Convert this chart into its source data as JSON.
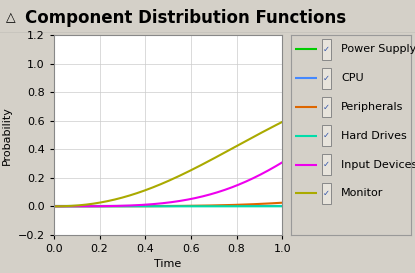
{
  "title": "Component Distribution Functions",
  "xlabel": "Time",
  "ylabel": "Probability",
  "xlim": [
    0.0,
    1.0
  ],
  "ylim": [
    -0.2,
    1.2
  ],
  "xticks": [
    0.0,
    0.2,
    0.4,
    0.6,
    0.8,
    1.0
  ],
  "yticks": [
    -0.2,
    0.0,
    0.2,
    0.4,
    0.6,
    0.8,
    1.0,
    1.2
  ],
  "series": [
    {
      "label": "Power Supply",
      "color": "#00cc00",
      "scale": 200.0,
      "shape": 2.0
    },
    {
      "label": "CPU",
      "color": "#4488ff",
      "scale": 200.0,
      "shape": 2.0
    },
    {
      "label": "Peripherals",
      "color": "#dd6600",
      "scale": 2.5,
      "shape": 4.0
    },
    {
      "label": "Hard Drives",
      "color": "#00ddaa",
      "scale": 40.0,
      "shape": 2.0
    },
    {
      "label": "Input Devices",
      "color": "#ee00ee",
      "scale": 1.3,
      "shape": 3.8
    },
    {
      "label": "Monitor",
      "color": "#aaaa00",
      "scale": 1.05,
      "shape": 2.2
    }
  ],
  "background_color": "#d4d0c8",
  "plot_bg_color": "#ffffff",
  "title_fontsize": 12,
  "axis_fontsize": 8,
  "tick_fontsize": 8,
  "legend_fontsize": 8
}
